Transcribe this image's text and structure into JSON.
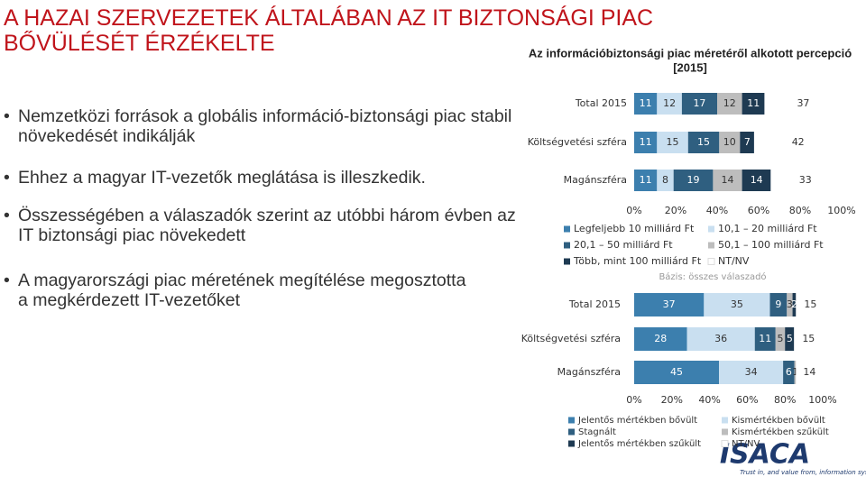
{
  "title_lines": [
    "A HAZAI SZERVEZETEK ÁLTALÁBAN AZ IT BIZTONSÁGI PIAC",
    "BŐVÜLÉSÉT ÉRZÉKELTE"
  ],
  "bullets": [
    "Nemzetközi források a globális információ-biztonsági piac stabil növekedését indikálják",
    "Ehhez a magyar IT-vezetők meglátása is illeszkedik.",
    "Összességében a válaszadók szerint az utóbbi három évben az IT biztonsági piac növekedett",
    "A magyarországi piac méretének megítélése megosztotta a megkérdezett IT-vezetőket"
  ],
  "logo": {
    "name": "ISACA",
    "tagline": "Trust in, and value from, information systems"
  },
  "chart_data": [
    {
      "type": "stacked-bar-horizontal",
      "title_lines": [
        "Az információbiztonsági piac méretéről alkotott percepció",
        "[2015]"
      ],
      "note": "Bázis: összes válaszadó",
      "categories": [
        "Total 2015",
        "Költségvetési szféra",
        "Magánszféra"
      ],
      "xlim": [
        0,
        100
      ],
      "xticks": [
        {
          "value": 0,
          "label": "0%"
        },
        {
          "value": 20,
          "label": "20%"
        },
        {
          "value": 40,
          "label": "40%"
        },
        {
          "value": 60,
          "label": "60%"
        },
        {
          "value": 80,
          "label": "80%"
        },
        {
          "value": 100,
          "label": "100%"
        }
      ],
      "series": [
        {
          "name": "Legfeljebb 10 milliárd Ft",
          "color": "#3c7fae",
          "values": [
            11,
            11,
            11
          ]
        },
        {
          "name": "10,1 – 20 milliárd Ft",
          "color": "#c9dff0",
          "values": [
            12,
            15,
            8
          ]
        },
        {
          "name": "20,1 – 50 milliárd Ft",
          "color": "#2f5f80",
          "values": [
            17,
            15,
            19
          ]
        },
        {
          "name": "50,1 – 100 milliárd Ft",
          "color": "#bdbdbd",
          "values": [
            12,
            10,
            14
          ]
        },
        {
          "name": "Több, mint 100 milliárd Ft",
          "color": "#1e3a52",
          "values": [
            11,
            7,
            14
          ]
        },
        {
          "name": "NT/NV",
          "color": "#ffffff",
          "values": [
            37,
            42,
            33
          ]
        }
      ]
    },
    {
      "type": "stacked-bar-horizontal",
      "categories": [
        "Total 2015",
        "Költségvetési szféra",
        "Magánszféra"
      ],
      "xlim": [
        0,
        100
      ],
      "xticks": [
        {
          "value": 0,
          "label": "0%"
        },
        {
          "value": 20,
          "label": "20%"
        },
        {
          "value": 40,
          "label": "40%"
        },
        {
          "value": 60,
          "label": "60%"
        },
        {
          "value": 80,
          "label": "80%"
        },
        {
          "value": 100,
          "label": "100%"
        }
      ],
      "series": [
        {
          "name": "Jelentős mértékben bővült",
          "color": "#3c7fae",
          "values": [
            37,
            28,
            45
          ]
        },
        {
          "name": "Kismértékben bővült",
          "color": "#c9dff0",
          "values": [
            35,
            36,
            34
          ]
        },
        {
          "name": "Stagnált",
          "color": "#2f5f80",
          "values": [
            9,
            11,
            6
          ]
        },
        {
          "name": "Kismértékben szűkült",
          "color": "#bdbdbd",
          "values": [
            3,
            5,
            1
          ]
        },
        {
          "name": "Jelentős mértékben szűkült",
          "color": "#1e3a52",
          "values": [
            2,
            5,
            0
          ]
        },
        {
          "name": "NT/NV",
          "color": "#ffffff",
          "values": [
            15,
            15,
            14
          ]
        }
      ]
    }
  ]
}
